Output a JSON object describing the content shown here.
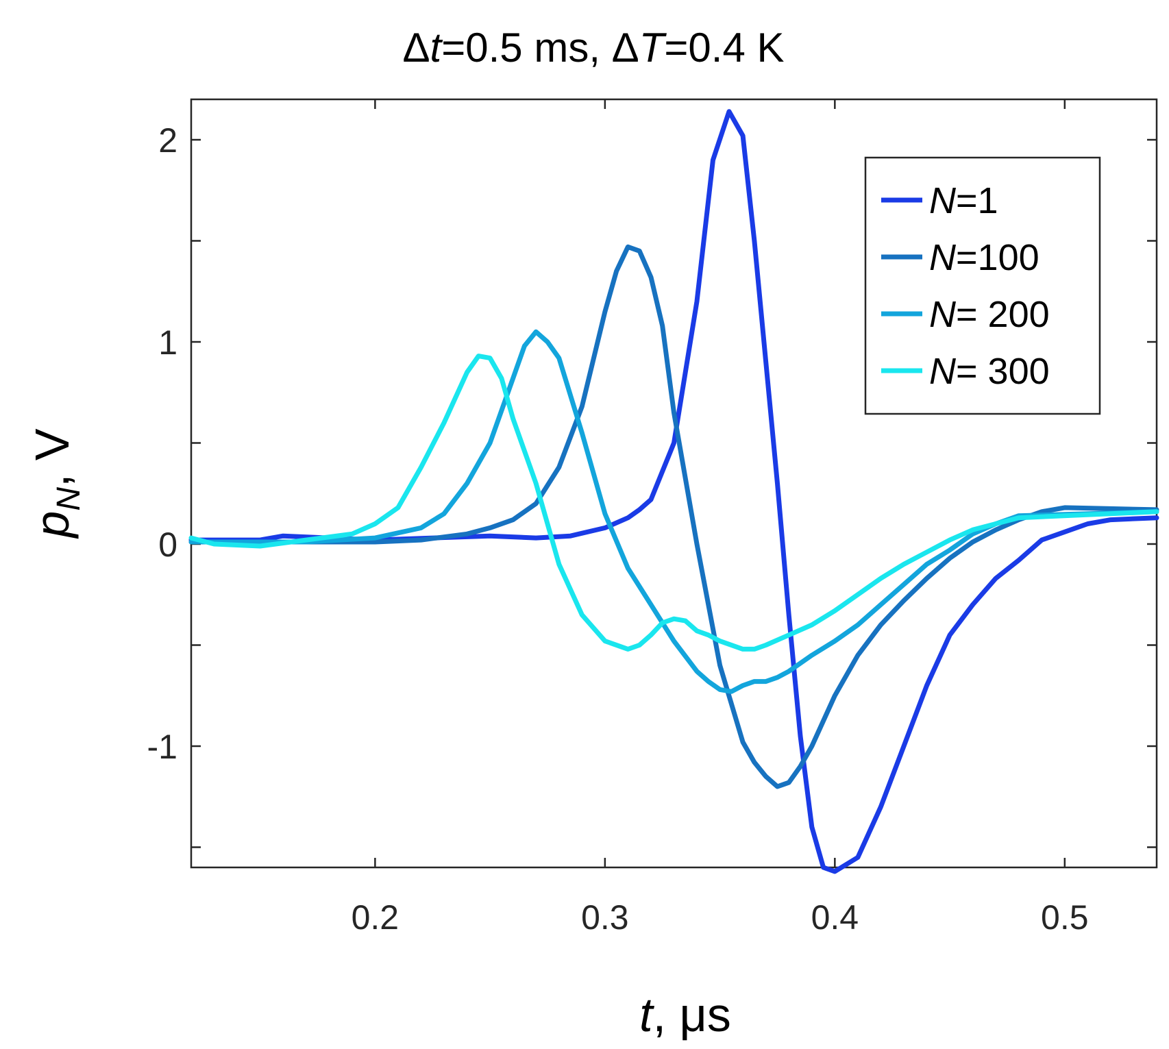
{
  "chart_data": {
    "type": "line",
    "title_parts": [
      "Δ",
      "t",
      "=0.5 ms, Δ",
      "T",
      "=0.4 K"
    ],
    "xlabel_parts": [
      "t",
      ", μs"
    ],
    "ylabel_parts": [
      "p",
      "N",
      ", V"
    ],
    "xlim": [
      0.12,
      0.54
    ],
    "ylim": [
      -1.6,
      2.2
    ],
    "xticks": [
      0.2,
      0.3,
      0.4,
      0.5
    ],
    "xtick_labels": [
      "0.2",
      "0.3",
      "0.4",
      "0.5"
    ],
    "yticks": [
      -1.5,
      -1,
      -0.5,
      0,
      0.5,
      1,
      1.5,
      2
    ],
    "ytick_labels": [
      "",
      "-1",
      "",
      "0",
      "",
      "1",
      "",
      "2"
    ],
    "legend_position": "top-right",
    "series": [
      {
        "name": "N=1",
        "label_italic": "N",
        "label_rest": "=1",
        "color": "#1a3be6",
        "x": [
          0.12,
          0.15,
          0.16,
          0.2,
          0.25,
          0.27,
          0.285,
          0.3,
          0.31,
          0.315,
          0.32,
          0.33,
          0.34,
          0.347,
          0.354,
          0.36,
          0.365,
          0.37,
          0.375,
          0.38,
          0.385,
          0.39,
          0.395,
          0.4,
          0.41,
          0.42,
          0.43,
          0.44,
          0.45,
          0.46,
          0.47,
          0.48,
          0.49,
          0.5,
          0.51,
          0.52,
          0.54
        ],
        "y": [
          0.02,
          0.02,
          0.04,
          0.02,
          0.04,
          0.03,
          0.04,
          0.08,
          0.13,
          0.17,
          0.22,
          0.5,
          1.2,
          1.9,
          2.14,
          2.02,
          1.5,
          0.9,
          0.3,
          -0.35,
          -0.95,
          -1.4,
          -1.6,
          -1.62,
          -1.55,
          -1.3,
          -1.0,
          -0.7,
          -0.45,
          -0.3,
          -0.17,
          -0.08,
          0.02,
          0.06,
          0.1,
          0.12,
          0.13
        ]
      },
      {
        "name": "N=100",
        "label_italic": "N",
        "label_rest": "=100",
        "color": "#1772c0",
        "x": [
          0.12,
          0.2,
          0.22,
          0.24,
          0.25,
          0.26,
          0.27,
          0.28,
          0.29,
          0.3,
          0.305,
          0.31,
          0.315,
          0.32,
          0.325,
          0.33,
          0.34,
          0.35,
          0.36,
          0.365,
          0.37,
          0.375,
          0.38,
          0.385,
          0.39,
          0.4,
          0.41,
          0.42,
          0.43,
          0.44,
          0.45,
          0.46,
          0.47,
          0.48,
          0.49,
          0.5,
          0.54
        ],
        "y": [
          0.01,
          0.01,
          0.02,
          0.05,
          0.08,
          0.12,
          0.2,
          0.38,
          0.68,
          1.15,
          1.35,
          1.47,
          1.45,
          1.32,
          1.08,
          0.65,
          0.0,
          -0.6,
          -0.98,
          -1.08,
          -1.15,
          -1.2,
          -1.18,
          -1.1,
          -1.0,
          -0.75,
          -0.55,
          -0.4,
          -0.28,
          -0.17,
          -0.07,
          0.01,
          0.07,
          0.12,
          0.16,
          0.18,
          0.17
        ]
      },
      {
        "name": "N= 200",
        "label_italic": "N",
        "label_rest": "= 200",
        "color": "#13a5dc",
        "x": [
          0.12,
          0.17,
          0.2,
          0.22,
          0.23,
          0.24,
          0.25,
          0.26,
          0.265,
          0.27,
          0.275,
          0.28,
          0.29,
          0.3,
          0.31,
          0.32,
          0.33,
          0.34,
          0.345,
          0.35,
          0.355,
          0.36,
          0.365,
          0.37,
          0.375,
          0.38,
          0.39,
          0.4,
          0.41,
          0.42,
          0.43,
          0.44,
          0.45,
          0.46,
          0.47,
          0.48,
          0.54
        ],
        "y": [
          0.01,
          0.01,
          0.03,
          0.08,
          0.15,
          0.3,
          0.5,
          0.82,
          0.98,
          1.05,
          1.0,
          0.92,
          0.55,
          0.15,
          -0.12,
          -0.3,
          -0.48,
          -0.63,
          -0.68,
          -0.72,
          -0.73,
          -0.7,
          -0.68,
          -0.68,
          -0.66,
          -0.63,
          -0.55,
          -0.48,
          -0.4,
          -0.3,
          -0.2,
          -0.1,
          -0.03,
          0.05,
          0.1,
          0.14,
          0.16
        ]
      },
      {
        "name": "N= 300",
        "label_italic": "N",
        "label_rest": "= 300",
        "color": "#1ae6ee",
        "x": [
          0.12,
          0.13,
          0.15,
          0.17,
          0.19,
          0.2,
          0.21,
          0.22,
          0.23,
          0.24,
          0.245,
          0.25,
          0.255,
          0.26,
          0.27,
          0.28,
          0.29,
          0.3,
          0.31,
          0.315,
          0.32,
          0.325,
          0.33,
          0.335,
          0.34,
          0.345,
          0.35,
          0.36,
          0.365,
          0.37,
          0.38,
          0.39,
          0.4,
          0.41,
          0.42,
          0.43,
          0.44,
          0.45,
          0.46,
          0.47,
          0.48,
          0.54
        ],
        "y": [
          0.03,
          0.0,
          -0.01,
          0.02,
          0.05,
          0.1,
          0.18,
          0.38,
          0.6,
          0.85,
          0.93,
          0.92,
          0.82,
          0.62,
          0.3,
          -0.1,
          -0.35,
          -0.48,
          -0.52,
          -0.5,
          -0.45,
          -0.39,
          -0.37,
          -0.38,
          -0.43,
          -0.45,
          -0.48,
          -0.52,
          -0.52,
          -0.5,
          -0.45,
          -0.4,
          -0.33,
          -0.25,
          -0.17,
          -0.1,
          -0.04,
          0.02,
          0.07,
          0.1,
          0.13,
          0.16
        ]
      }
    ]
  }
}
